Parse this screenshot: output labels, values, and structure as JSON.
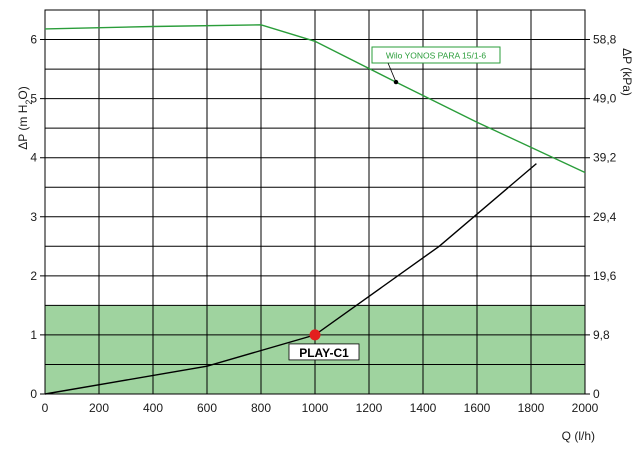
{
  "chart_data": {
    "type": "line",
    "x": {
      "label": "Q (l/h)",
      "lim": [
        0,
        2000
      ],
      "ticks": [
        0,
        200,
        400,
        600,
        800,
        1000,
        1200,
        1400,
        1600,
        1800,
        2000
      ]
    },
    "y_left": {
      "label": "ΔP (m H₂O)",
      "lim": [
        0,
        6.5
      ],
      "ticks": [
        0,
        1,
        2,
        3,
        4,
        5,
        6
      ]
    },
    "y_right": {
      "label": "ΔP (kPa)",
      "ticks": [
        {
          "value": 0,
          "label": "0"
        },
        {
          "value": 1,
          "label": "9,8"
        },
        {
          "value": 2,
          "label": "19,6"
        },
        {
          "value": 3,
          "label": "29,4"
        },
        {
          "value": 4,
          "label": "39,2"
        },
        {
          "value": 5,
          "label": "49,0"
        },
        {
          "value": 6,
          "label": "58,8"
        }
      ]
    },
    "minor_grid_y": [
      0.5,
      1.5,
      2.5,
      3.5,
      4.5,
      5.5
    ],
    "grid": true,
    "shaded_region": {
      "y_from": 0,
      "y_to": 1.5,
      "color": "#9fd39f"
    },
    "series": [
      {
        "name": "Wilo YONOS PARA 15/1-6",
        "color": "#2a9d3a",
        "points": [
          [
            0,
            6.18
          ],
          [
            400,
            6.22
          ],
          [
            800,
            6.25
          ],
          [
            1000,
            5.97
          ],
          [
            1300,
            5.28
          ],
          [
            1600,
            4.6
          ],
          [
            2000,
            3.75
          ]
        ]
      },
      {
        "name": "",
        "color": "#000000",
        "points": [
          [
            0,
            0
          ],
          [
            600,
            0.47
          ],
          [
            1000,
            1.0
          ],
          [
            1460,
            2.5
          ],
          [
            1820,
            3.9
          ]
        ]
      }
    ],
    "annotations": [
      {
        "text": "Wilo YONOS PARA 15/1-6",
        "point": [
          1300,
          5.28
        ],
        "color": "#2a9d3a"
      }
    ],
    "operating_point": {
      "label": "PLAY-C1",
      "x": 1000,
      "y": 1.0,
      "color": "#e41e1e"
    }
  }
}
